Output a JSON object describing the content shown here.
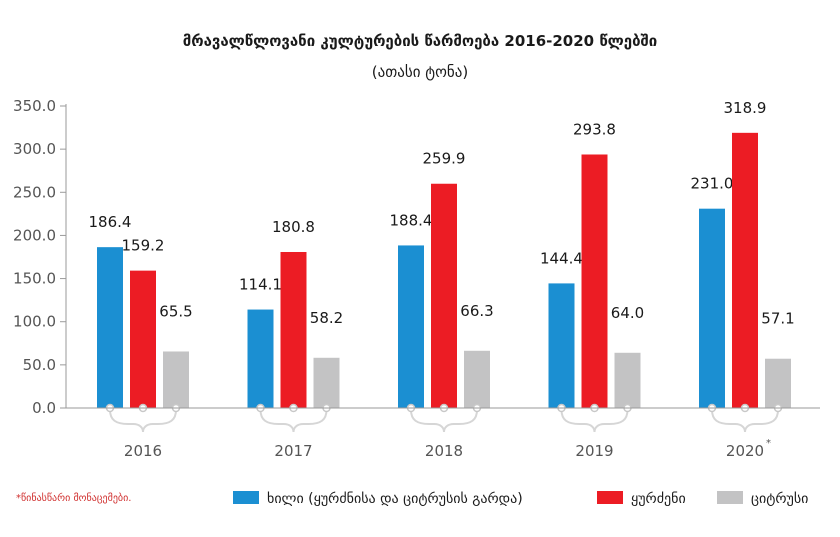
{
  "chart_data": {
    "type": "bar",
    "title": "მრავალწლოვანი კულტურების წარმოება 2016-2020 წლებში",
    "subtitle": "(ათასი ტონა)",
    "categories": [
      "2016",
      "2017",
      "2018",
      "2019",
      "2020"
    ],
    "category_marks": [
      "",
      "",
      "",
      "",
      "*"
    ],
    "series": [
      {
        "name": "ხილი (ყურძნისა და ციტრუსის გარდა)",
        "color": "#1b8fd2",
        "values": [
          186.4,
          114.1,
          188.4,
          144.4,
          231.0
        ]
      },
      {
        "name": "ყურძენი",
        "color": "#ec1c24",
        "values": [
          159.2,
          180.8,
          259.9,
          293.8,
          318.9
        ]
      },
      {
        "name": "ციტრუსი",
        "color": "#c3c3c4",
        "values": [
          65.5,
          58.2,
          66.3,
          64.0,
          57.1
        ]
      }
    ],
    "ylim": [
      0,
      350
    ],
    "yticks": [
      "0.0",
      "50.0",
      "100.0",
      "150.0",
      "200.0",
      "250.0",
      "300.0",
      "350.0"
    ],
    "grid": false,
    "legend_position": "bottom",
    "footnote": "*წინასწარი მონაცემები."
  }
}
